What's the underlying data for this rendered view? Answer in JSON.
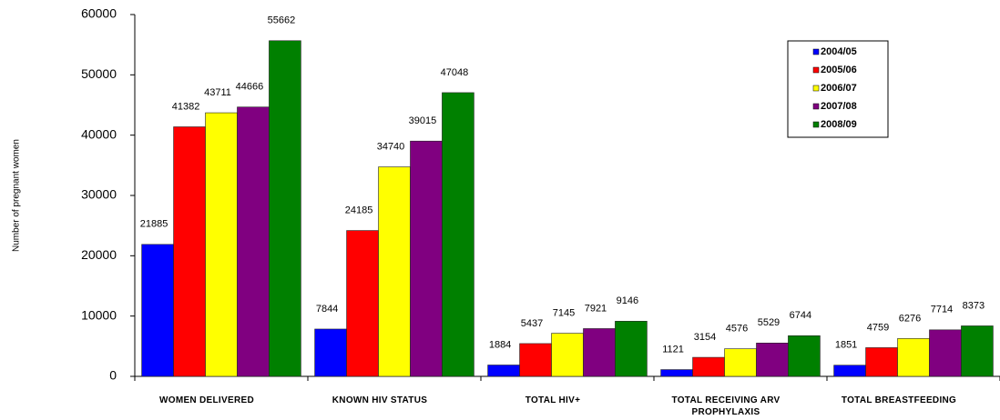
{
  "chart_data": {
    "type": "bar",
    "y_label": "Number of pregnant women",
    "categories": [
      "WOMEN DELIVERED",
      "KNOWN HIV STATUS",
      "TOTAL HIV+",
      "TOTAL RECEIVING ARV PROPHYLAXIS",
      "TOTAL BREASTFEEDING"
    ],
    "series": [
      {
        "name": "2004/05",
        "color": "#0000ff",
        "values": [
          21885,
          7844,
          1884,
          1121,
          1851
        ]
      },
      {
        "name": "2005/06",
        "color": "#ff0000",
        "values": [
          41382,
          24185,
          5437,
          3154,
          4759
        ]
      },
      {
        "name": "2006/07",
        "color": "#ffff00",
        "values": [
          43711,
          34740,
          7145,
          4576,
          6276
        ]
      },
      {
        "name": "2007/08",
        "color": "#800080",
        "values": [
          44666,
          39015,
          7921,
          5529,
          7714
        ]
      },
      {
        "name": "2008/09",
        "color": "#008000",
        "values": [
          55662,
          47048,
          9146,
          6744,
          8373
        ]
      }
    ],
    "ylim": [
      0,
      60000
    ],
    "yticks": [
      0,
      10000,
      20000,
      30000,
      40000,
      50000,
      60000
    ],
    "legend": "upper right"
  }
}
